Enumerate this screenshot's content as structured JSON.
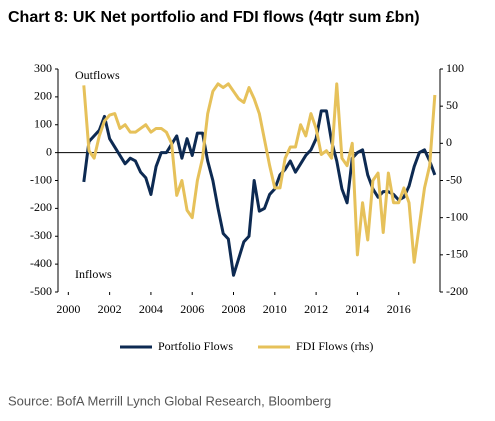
{
  "chart_data": {
    "type": "line",
    "title": "Chart 8: UK Net portfolio and FDI flows (4qtr sum £bn)",
    "annotations": [
      "Outflows",
      "Inflows"
    ],
    "source": "Source: BofA Merrill Lynch Global Research, Bloomberg",
    "x": [
      2000.75,
      2001,
      2001.25,
      2001.5,
      2001.75,
      2002,
      2002.25,
      2002.5,
      2002.75,
      2003,
      2003.25,
      2003.5,
      2003.75,
      2004,
      2004.25,
      2004.5,
      2004.75,
      2005,
      2005.25,
      2005.5,
      2005.75,
      2006,
      2006.25,
      2006.5,
      2006.75,
      2007,
      2007.25,
      2007.5,
      2007.75,
      2008,
      2008.25,
      2008.5,
      2008.75,
      2009,
      2009.25,
      2009.5,
      2009.75,
      2010,
      2010.25,
      2010.5,
      2010.75,
      2011,
      2011.25,
      2011.5,
      2011.75,
      2012,
      2012.25,
      2012.5,
      2012.75,
      2013,
      2013.25,
      2013.5,
      2013.75,
      2014,
      2014.25,
      2014.5,
      2014.75,
      2015,
      2015.25,
      2015.5,
      2015.75,
      2016,
      2016.25,
      2016.5,
      2016.75,
      2017,
      2017.25,
      2017.5,
      2017.75
    ],
    "series": [
      {
        "name": "Portfolio Flows",
        "color": "#0d2a52",
        "values": [
          -105,
          40,
          60,
          80,
          130,
          50,
          20,
          -10,
          -40,
          -20,
          -30,
          -70,
          -90,
          -150,
          -50,
          0,
          0,
          30,
          60,
          -20,
          50,
          -10,
          70,
          70,
          -30,
          -100,
          -200,
          -290,
          -310,
          -440,
          -380,
          -320,
          -300,
          -100,
          -210,
          -200,
          -150,
          -130,
          -80,
          -60,
          -30,
          -70,
          -40,
          -10,
          10,
          50,
          150,
          150,
          40,
          -30,
          -130,
          -180,
          -20,
          0,
          10,
          -80,
          -130,
          -160,
          -140,
          -140,
          -150,
          -170,
          -160,
          -120,
          -50,
          0,
          10,
          -30,
          -80
        ]
      },
      {
        "name": "FDI Flows (rhs)",
        "color": "#e6c15a",
        "axis": "y2",
        "values": [
          78,
          -10,
          -20,
          10,
          30,
          38,
          40,
          20,
          25,
          15,
          15,
          20,
          25,
          15,
          20,
          20,
          15,
          0,
          -70,
          -50,
          -90,
          -100,
          -50,
          -20,
          40,
          70,
          80,
          75,
          80,
          70,
          60,
          55,
          75,
          60,
          40,
          5,
          -30,
          -60,
          -60,
          -20,
          -5,
          -5,
          25,
          10,
          40,
          20,
          -15,
          -10,
          -20,
          80,
          -20,
          -30,
          0,
          -150,
          -80,
          -130,
          -50,
          -40,
          -120,
          -40,
          -80,
          -80,
          -60,
          -80,
          -160,
          -110,
          -60,
          -30,
          65
        ]
      }
    ],
    "xlim": [
      1999.5,
      2018
    ],
    "xticks": [
      2000,
      2002,
      2004,
      2006,
      2008,
      2010,
      2012,
      2014,
      2016
    ],
    "ylim": [
      -500,
      300
    ],
    "yticks": [
      -500,
      -400,
      -300,
      -200,
      -100,
      0,
      100,
      200,
      300
    ],
    "y2lim": [
      -200,
      100
    ],
    "y2ticks": [
      -200,
      -150,
      -100,
      -50,
      0,
      50,
      100
    ]
  }
}
